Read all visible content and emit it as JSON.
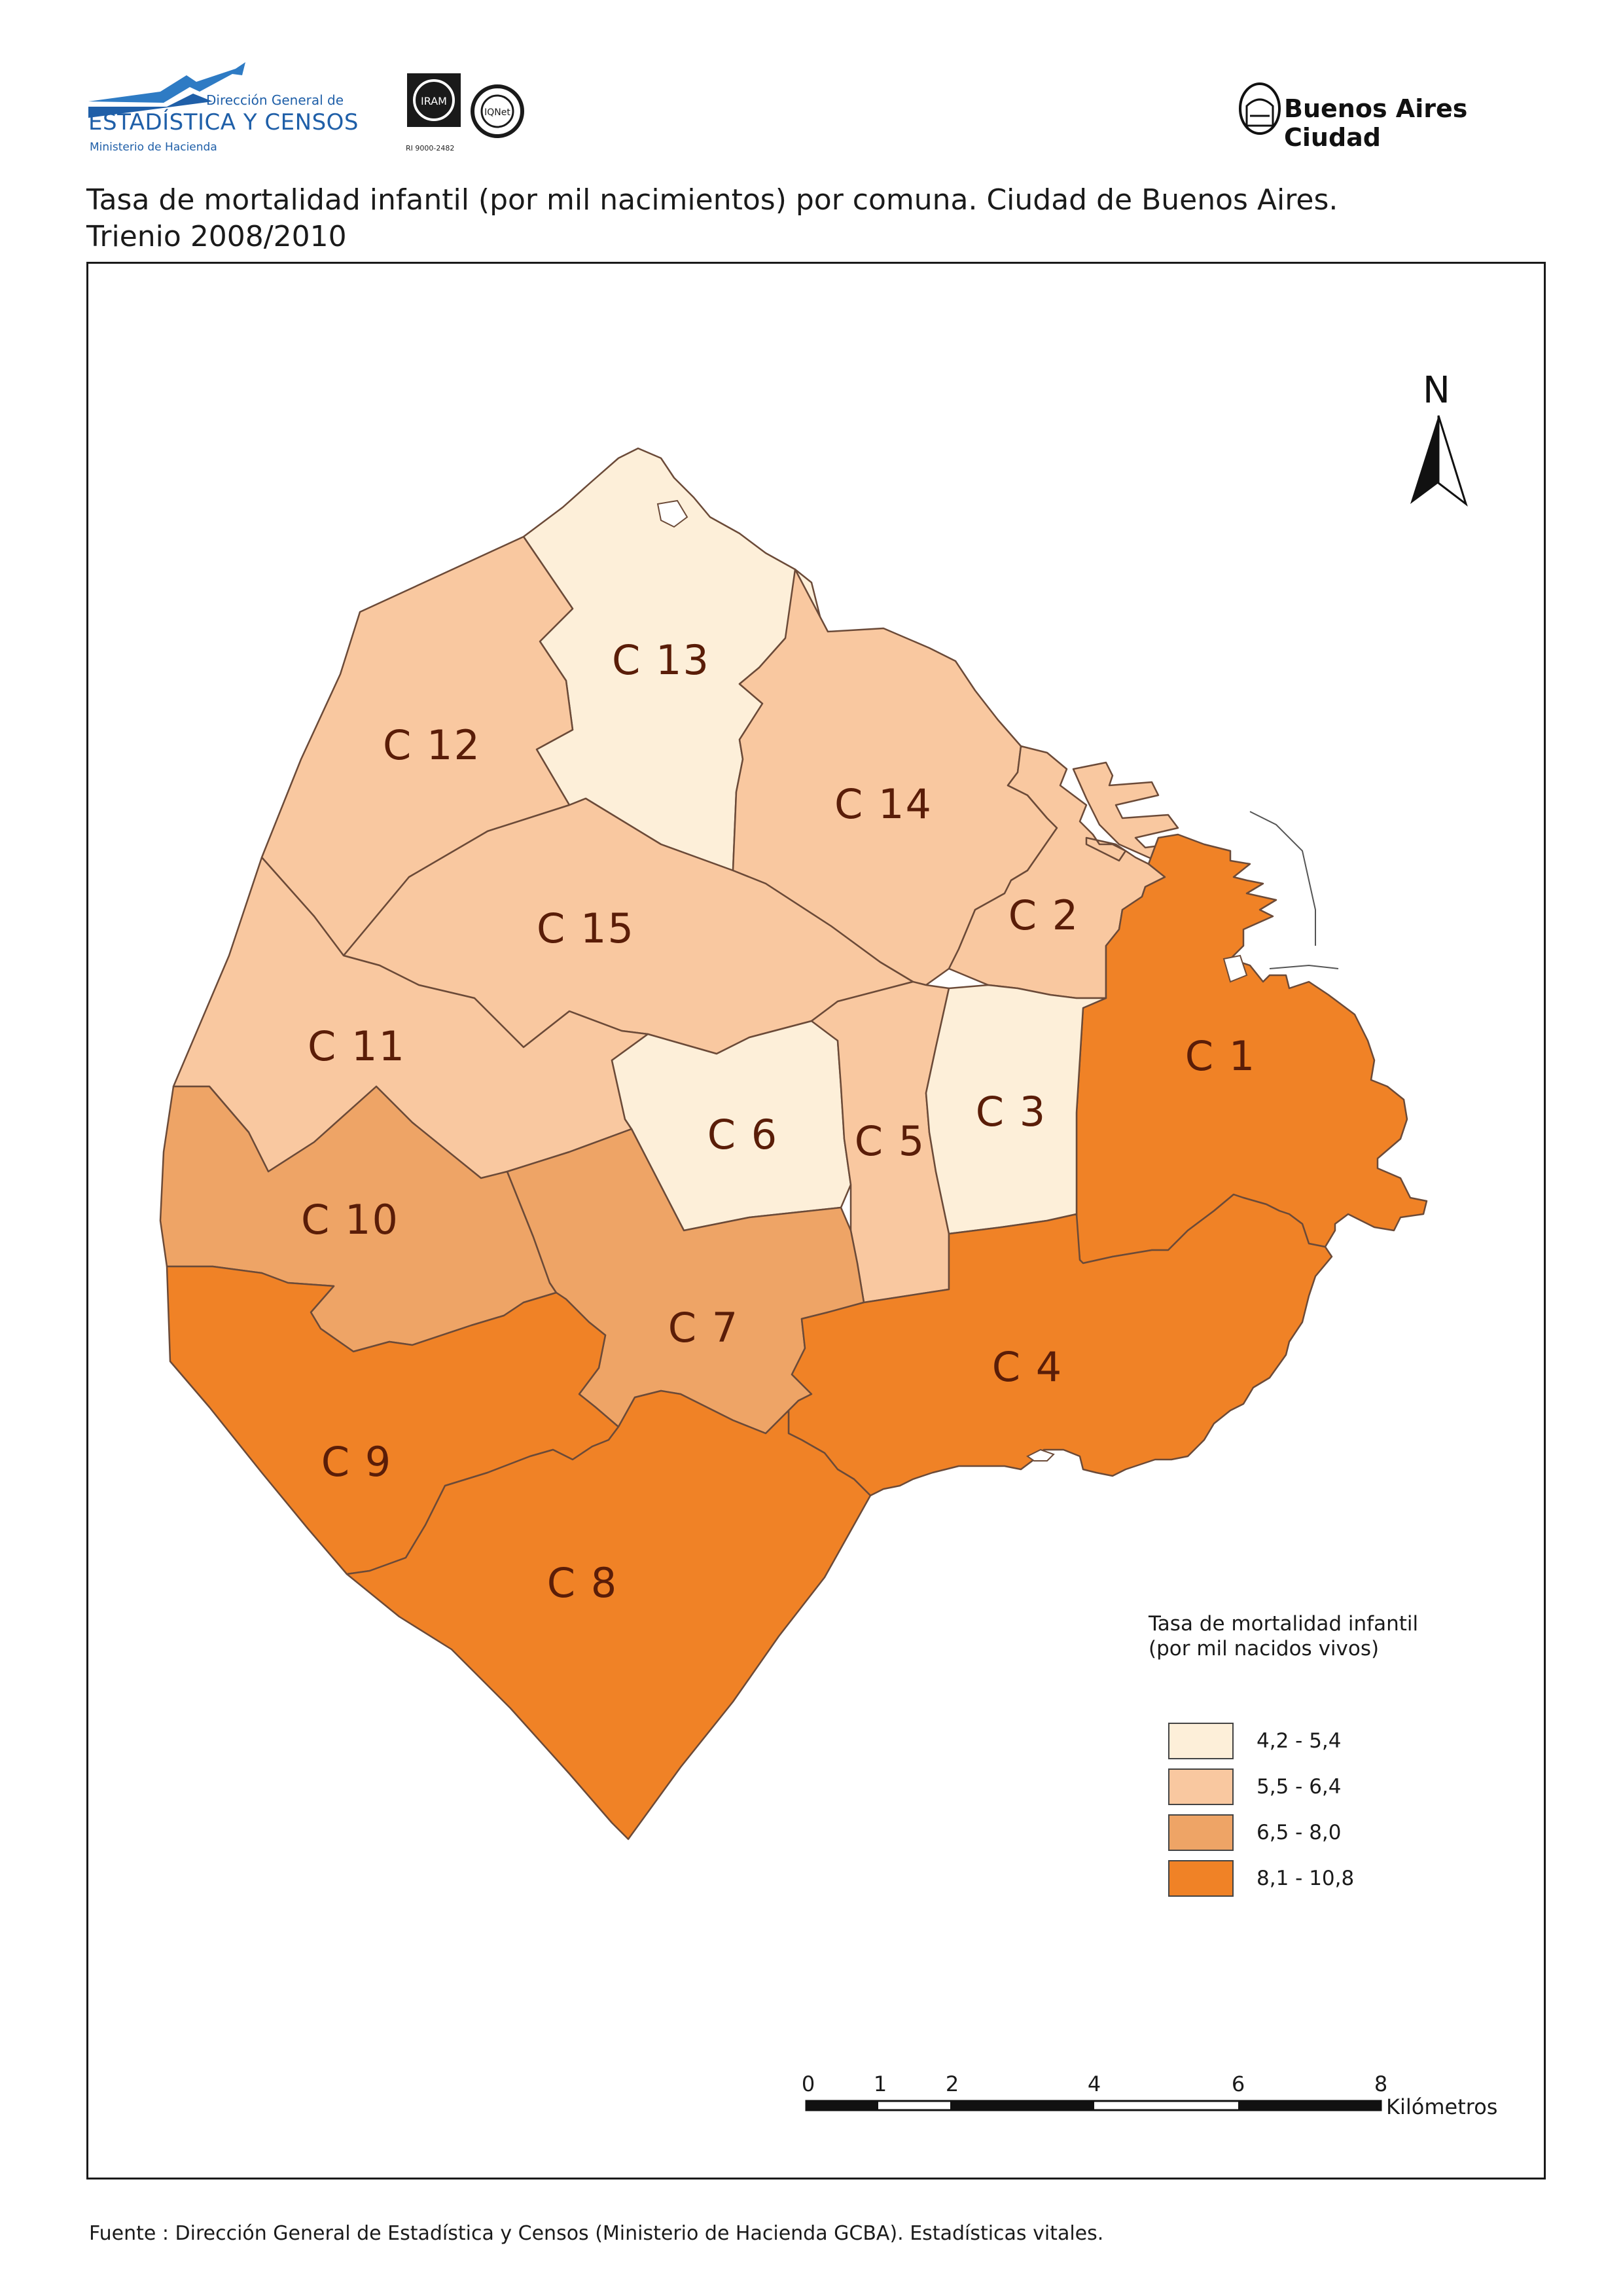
{
  "header": {
    "org_line1": "Dirección General de",
    "org_line2": "ESTADÍSTICA Y CENSOS",
    "org_line3": "Ministerio de Hacienda",
    "cert_text": "RI 9000-2482",
    "city_name": "Buenos Aires Ciudad"
  },
  "title": {
    "line1": "Tasa de mortalidad infantil (por mil nacimientos) por comuna. Ciudad de Buenos Aires.",
    "line2": "Trienio 2008/2010"
  },
  "map": {
    "north_label": "N",
    "class_colors": [
      "#fdf0dc",
      "#f9c9a0",
      "#ee a868",
      "#ee9236"
    ],
    "boundary_color": "#5a3a2a",
    "comunas": [
      {
        "label": "C 1",
        "class": 4
      },
      {
        "label": "C 2",
        "class": 2
      },
      {
        "label": "C 3",
        "class": 1
      },
      {
        "label": "C 4",
        "class": 4
      },
      {
        "label": "C 5",
        "class": 2
      },
      {
        "label": "C 6",
        "class": 1
      },
      {
        "label": "C 7",
        "class": 3
      },
      {
        "label": "C 8",
        "class": 4
      },
      {
        "label": "C 9",
        "class": 4
      },
      {
        "label": "C 10",
        "class": 3
      },
      {
        "label": "C 11",
        "class": 2
      },
      {
        "label": "C 12",
        "class": 2
      },
      {
        "label": "C 13",
        "class": 1
      },
      {
        "label": "C 14",
        "class": 2
      },
      {
        "label": "C 15",
        "class": 2
      }
    ]
  },
  "legend": {
    "title_line1": "Tasa de mortalidad infantil",
    "title_line2": "(por mil nacidos vivos)",
    "items": [
      {
        "label": "4,2 - 5,4",
        "color": "#fdefd9"
      },
      {
        "label": "5,5 - 6,4",
        "color": "#f9c8a0"
      },
      {
        "label": "6,5 - 8,0",
        "color": "#eea466"
      },
      {
        "label": "8,1 - 10,8",
        "color": "#f08226"
      }
    ]
  },
  "scale_bar": {
    "ticks": [
      "0",
      "1",
      "2",
      "4",
      "6",
      "8"
    ],
    "unit": "Kilómetros"
  },
  "source": {
    "prefix": "Fuente :",
    "text": "Dirección General de Estadística y Censos (Ministerio de Hacienda GCBA). Estadísticas vitales."
  }
}
